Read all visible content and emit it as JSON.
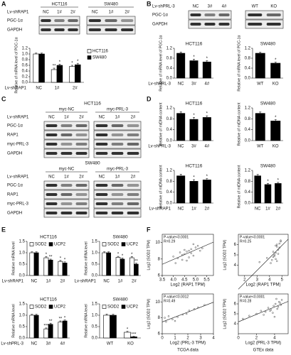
{
  "panel_labels": [
    "A",
    "B",
    "C",
    "D",
    "E",
    "F"
  ],
  "blots": [
    {
      "lane_label": "Lv-shRAP1",
      "groups": [
        {
          "name": "HCT116",
          "lanes": [
            "NC",
            "1#",
            "2#"
          ]
        },
        {
          "name": "SW480",
          "lanes": [
            "NC",
            "1#",
            "2#"
          ]
        }
      ],
      "rows": [
        "PGC-1α",
        "GAPDH"
      ]
    },
    {
      "lane_label": "Lv-shPRL-3",
      "groups": [
        {
          "lanes": [
            "NC",
            "3#",
            "4#"
          ]
        },
        {
          "lanes": [
            "WT",
            "KO"
          ]
        }
      ],
      "rows": [
        "PGC-1α",
        "GAPDH"
      ]
    },
    {
      "title": "HCT116",
      "lane_label": "Lv-shRAP1",
      "groups": [
        {
          "name": "myc-NC",
          "lanes": [
            "NC",
            "1#",
            "2#"
          ]
        },
        {
          "name": "myc-PRL-3",
          "lanes": [
            "NC",
            "1#",
            "2#"
          ]
        }
      ],
      "rows": [
        "PGC-1α",
        "RAP1",
        "myc-PRL-3",
        "GAPDH"
      ]
    },
    {
      "title": "SW480",
      "lane_label": "Lv-shRAP1",
      "groups": [
        {
          "name": "myc-NC",
          "lanes": [
            "NC",
            "1#",
            "2#"
          ]
        },
        {
          "name": "myc-PRL-3",
          "lanes": [
            "NC",
            "1#",
            "2#"
          ]
        }
      ],
      "rows": [
        "PGC-1α",
        "RAP1",
        "myc-PRL-3",
        "GAPDH"
      ]
    }
  ],
  "chart_data": [
    {
      "type": "bar",
      "ylabel": "Relative of mRNA level of PGC-1α",
      "xlabel": "Lv-shRAP1",
      "categories": [
        "NC",
        "1#",
        "2#"
      ],
      "series": [
        {
          "name": "HCT116",
          "color": "#ffffff",
          "values": [
            1.0,
            0.45,
            0.56
          ],
          "errors": [
            0.03,
            0.05,
            0.04
          ],
          "stars": [
            null,
            "**",
            "*"
          ]
        },
        {
          "name": "SW480",
          "color": "#000000",
          "values": [
            1.0,
            0.6,
            0.62
          ],
          "errors": [
            0.03,
            0.04,
            0.05
          ],
          "stars": [
            null,
            "*",
            "*"
          ]
        }
      ],
      "ylim": [
        0,
        1.2
      ],
      "yticks": [
        {
          "value": 0,
          "label": "0.0"
        },
        0.2,
        0.4,
        0.6,
        0.8,
        {
          "value": 1,
          "label": "1.0"
        },
        1.2
      ],
      "legend": "right"
    },
    {
      "type": "bar",
      "title": "HCT116",
      "ylabel": "Relative of mRNA level of PGC-1α",
      "xlabel": "Lv-shPRL-3",
      "categories": [
        "NC",
        "3#",
        "4#"
      ],
      "color": "#000000",
      "values": [
        1.0,
        0.7,
        0.65
      ],
      "errors": [
        0.05,
        0.06,
        0.05
      ],
      "stars": [
        null,
        "*",
        "*"
      ],
      "ylim": [
        0,
        1.2
      ],
      "yticks": [
        {
          "value": 0,
          "label": "0.0"
        },
        0.4,
        0.8,
        1.2
      ]
    },
    {
      "type": "bar",
      "title": "SW480",
      "ylabel": "Relative of mRNA level of PGC-1α",
      "categories": [
        "WT",
        "KO"
      ],
      "color": "#000000",
      "values": [
        1.0,
        0.6
      ],
      "errors": [
        0.04,
        0.04
      ],
      "stars": [
        null,
        "*"
      ],
      "ylim": [
        0,
        1.2
      ],
      "yticks": [
        {
          "value": 0,
          "label": "0.0"
        },
        0.4,
        0.8,
        1.2
      ]
    },
    {
      "type": "bar",
      "title": "HCT116",
      "ylabel": "Relative of mtDNA content",
      "xlabel": "Lv-shPRL-3",
      "categories": [
        "NC",
        "3#",
        "4#"
      ],
      "color": "#000000",
      "values": [
        1.0,
        0.78,
        0.85
      ],
      "errors": [
        0.06,
        0.07,
        0.06
      ],
      "stars": [
        null,
        "*",
        "*"
      ],
      "ylim": [
        0,
        1.2
      ],
      "yticks": [
        {
          "value": 0,
          "label": "0.0"
        },
        0.4,
        0.8,
        1.2
      ]
    },
    {
      "type": "bar",
      "title": "SW480",
      "ylabel": "Relative of mtDNA content",
      "categories": [
        "WT",
        "KO"
      ],
      "color": "#000000",
      "values": [
        1.0,
        0.72
      ],
      "errors": [
        0.05,
        0.05
      ],
      "stars": [
        null,
        "*"
      ],
      "ylim": [
        0,
        1.2
      ],
      "yticks": [
        {
          "value": 0,
          "label": "0.0"
        },
        0.4,
        0.8,
        1.2
      ]
    },
    {
      "type": "bar",
      "title": "HCT116",
      "ylabel": "Relative of mtDNA content",
      "xlabel": "Lv-shRAP1",
      "categories": [
        "NC",
        "1#",
        "2#"
      ],
      "color": "#000000",
      "values": [
        1.0,
        0.8,
        0.85
      ],
      "errors": [
        0.06,
        0.06,
        0.05
      ],
      "stars": [
        null,
        "*",
        "*"
      ],
      "ylim": [
        0,
        1.2
      ],
      "yticks": [
        {
          "value": 0,
          "label": "0.0"
        },
        0.4,
        0.8,
        1.2
      ]
    },
    {
      "type": "bar",
      "title": "SW480",
      "ylabel": "Relative of mtDNA content",
      "categories": [
        "NC",
        "1#",
        "2#"
      ],
      "color": "#000000",
      "values": [
        1.0,
        0.68,
        0.72
      ],
      "errors": [
        0.05,
        0.04,
        0.04
      ],
      "stars": [
        null,
        "*",
        "*"
      ],
      "ylim": [
        0,
        1.2
      ],
      "yticks": [
        {
          "value": 0,
          "label": "0.0"
        },
        0.4,
        0.8,
        1.2
      ]
    },
    {
      "type": "bar",
      "title": "HCT116",
      "ylabel": "Relative mRNA level",
      "xlabel": "Lv-shRAP1",
      "categories": [
        "NC",
        "1#",
        "2#"
      ],
      "series": [
        {
          "name": "SOD2",
          "color": "#ffffff",
          "values": [
            1.0,
            0.78,
            0.62
          ],
          "errors": [
            0.04,
            0.05,
            0.04
          ],
          "stars": [
            null,
            "*",
            "*"
          ]
        },
        {
          "name": "UCP2",
          "color": "#000000",
          "values": [
            1.0,
            0.68,
            0.55
          ],
          "errors": [
            0.04,
            0.04,
            0.05
          ],
          "stars": [
            null,
            "**",
            "*"
          ]
        }
      ],
      "ylim": [
        0,
        1.5
      ],
      "yticks": [
        {
          "value": 0,
          "label": "0.0"
        },
        0.5,
        {
          "value": 1,
          "label": "1.0"
        },
        1.5
      ],
      "legend": "top"
    },
    {
      "type": "bar",
      "title": "SW480",
      "ylabel": "Relative mRNA level",
      "xlabel": "Lv-shRAP1",
      "categories": [
        "NC",
        "1#",
        "2#"
      ],
      "series": [
        {
          "name": "SOD2",
          "color": "#ffffff",
          "values": [
            1.0,
            0.8,
            0.78
          ],
          "errors": [
            0.04,
            0.04,
            0.05
          ],
          "stars": [
            null,
            "*",
            "*"
          ]
        },
        {
          "name": "UCP2",
          "color": "#000000",
          "values": [
            1.0,
            0.72,
            0.5
          ],
          "errors": [
            0.04,
            0.05,
            0.04
          ],
          "stars": [
            null,
            "*",
            "**"
          ]
        }
      ],
      "ylim": [
        0,
        1.5
      ],
      "yticks": [
        {
          "value": 0,
          "label": "0.0"
        },
        0.5,
        {
          "value": 1,
          "label": "1.0"
        },
        1.5
      ],
      "legend": "top"
    },
    {
      "type": "bar",
      "title": "HCT116",
      "ylabel": "Relative mRNA level",
      "xlabel": "Lv-shPRL-3",
      "categories": [
        "NC",
        "3#",
        "4#"
      ],
      "series": [
        {
          "name": "SOD2",
          "color": "#ffffff",
          "values": [
            1.0,
            0.4,
            0.7
          ],
          "errors": [
            0.04,
            0.04,
            0.05
          ],
          "stars": [
            null,
            "***",
            "**"
          ]
        },
        {
          "name": "UCP2",
          "color": "#000000",
          "values": [
            1.0,
            0.6,
            0.75
          ],
          "errors": [
            0.04,
            0.05,
            0.04
          ],
          "stars": [
            null,
            "**",
            "*"
          ]
        }
      ],
      "ylim": [
        0,
        1.5
      ],
      "yticks": [
        {
          "value": 0,
          "label": "0.0"
        },
        0.5,
        {
          "value": 1,
          "label": "1.0"
        },
        1.5
      ],
      "legend": "top"
    },
    {
      "type": "bar",
      "title": "SW480",
      "ylabel": "Relative mRNA level",
      "categories": [
        "WT",
        "KO"
      ],
      "series": [
        {
          "name": "SOD2",
          "color": "#ffffff",
          "values": [
            1.0,
            0.25
          ],
          "errors": [
            0.05,
            0.04
          ],
          "stars": [
            null,
            "*"
          ]
        },
        {
          "name": "UCP2",
          "color": "#000000",
          "values": [
            1.0,
            0.05
          ],
          "errors": [
            0.04,
            0.02
          ],
          "stars": [
            null,
            "***"
          ]
        }
      ],
      "ylim": [
        0,
        1.5
      ],
      "yticks": [
        {
          "value": 0,
          "label": "0.0"
        },
        0.5,
        {
          "value": 1,
          "label": "1.0"
        },
        1.5
      ],
      "legend": "top"
    },
    {
      "type": "scatter",
      "xlabel": "Log2 (RAP1 TPM)",
      "ylabel": "Log2 (SOD2 TPM)",
      "note": [
        "P-value<0.0001",
        "R=0.29"
      ],
      "color": "#444444",
      "x": [
        4.2,
        4.5,
        4.8,
        4.1,
        4.6,
        4.9,
        5.1,
        4.4,
        4.7,
        4.3,
        5.0,
        4.6,
        4.8,
        4.5,
        5.2,
        4.0,
        4.7,
        4.9,
        4.4,
        5.3
      ],
      "values": [
        8.1,
        8.6,
        9.2,
        7.5,
        8.9,
        8.4,
        9.6,
        7.9,
        9.0,
        8.8,
        9.4,
        7.8,
        8.7,
        9.1,
        9.0,
        8.3,
        8.2,
        9.8,
        8.5,
        9.3
      ],
      "xlim": [
        3.5,
        5.8
      ],
      "xticks": [
        3.5,
        {
          "value": 4,
          "label": "4.0"
        },
        4.5,
        {
          "value": 5,
          "label": "5.0"
        },
        5.5
      ],
      "ylim": [
        6,
        11
      ],
      "yticks": [
        6,
        8,
        10
      ]
    },
    {
      "type": "scatter",
      "xlabel": "Log2 (RAP1 TPM)",
      "ylabel": "Log2 (SOD2 TPM)",
      "note": [
        "P-value<0.0001",
        "R=0.25"
      ],
      "color": "#444444",
      "x": [
        4.2,
        4.5,
        4.6,
        4.3,
        4.8,
        4.4,
        4.7,
        4.9,
        4.5,
        4.1,
        4.6,
        4.3,
        4.7,
        4.4,
        4.8,
        3.2,
        3.8,
        4.5,
        4.6,
        4.9
      ],
      "values": [
        4.5,
        5.2,
        5.8,
        4.8,
        6.1,
        5.0,
        5.5,
        6.4,
        4.6,
        4.2,
        6.0,
        5.3,
        5.1,
        4.9,
        5.7,
        4.3,
        4.7,
        5.9,
        4.4,
        6.3
      ],
      "xlim": [
        1.5,
        5.5
      ],
      "xticks": [
        2,
        3,
        4,
        5
      ],
      "ylim": [
        3,
        7
      ],
      "yticks": [
        4,
        5,
        6
      ]
    },
    {
      "type": "scatter",
      "xlabel": "Log2 (PRL-3 TPM)",
      "ylabel": "Log2 (SOD2 TPM)",
      "note": [
        "P-value=0.0012",
        "R=0.49"
      ],
      "color": "#444444",
      "source": "TCGA data",
      "x": [
        0.3,
        0.8,
        1.2,
        1.6,
        2.1,
        2.5,
        0.5,
        1.0,
        1.9,
        2.8,
        3.3,
        0.2
      ],
      "values": [
        7.5,
        7.8,
        8.1,
        8.4,
        8.9,
        9.1,
        8.2,
        7.6,
        8.5,
        9.3,
        9.6,
        8.0
      ],
      "xlim": [
        0,
        4
      ],
      "xticks": [
        0,
        1,
        2,
        3,
        4
      ],
      "ylim": [
        6,
        11
      ],
      "yticks": [
        6,
        8,
        10
      ]
    },
    {
      "type": "scatter",
      "xlabel": "Log2 (PRL-3 TPM)",
      "ylabel": "Log2 (SOD2 TPM)",
      "note": [
        "P-value<0.0001",
        "R=0.28"
      ],
      "color": "#444444",
      "source": "GTEx data",
      "x": [
        0.5,
        1.2,
        2.0,
        2.5,
        3.0,
        3.3,
        3.6,
        3.9,
        4.1,
        4.3,
        4.5,
        4.7,
        3.8,
        4.2,
        4.4,
        2.8,
        4.6,
        3.5,
        4.0,
        4.8
      ],
      "values": [
        4.5,
        4.8,
        5.0,
        5.3,
        5.2,
        5.6,
        5.4,
        5.8,
        6.0,
        5.5,
        6.2,
        5.9,
        5.1,
        6.5,
        5.7,
        4.9,
        6.1,
        5.3,
        4.7,
        6.4
      ],
      "xlim": [
        0,
        5.5
      ],
      "xticks": [
        0,
        2,
        4
      ],
      "ylim": [
        3,
        7
      ],
      "yticks": [
        4,
        5,
        6
      ]
    }
  ]
}
